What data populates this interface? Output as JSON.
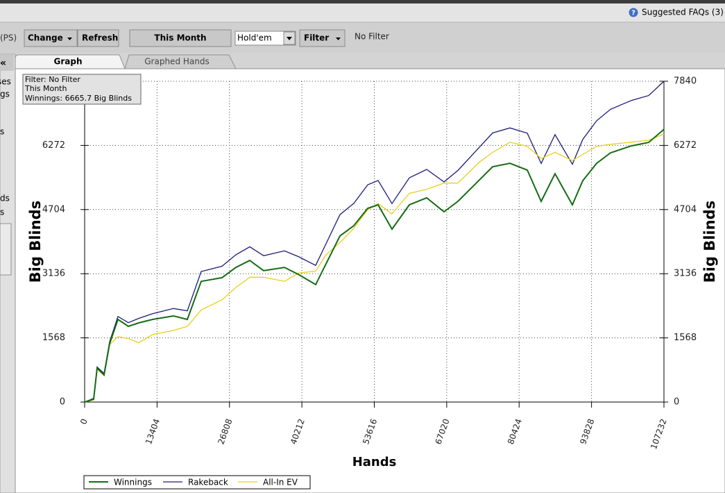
{
  "ui": {
    "faq_icon": "?",
    "faq": "Suggested FAQs (3)",
    "toolbar": {
      "site": "(PS)",
      "change": "Change",
      "refresh": "Refresh",
      "period": "This Month",
      "game": "Hold'em",
      "filter": "Filter",
      "filter_status": "No Filter"
    },
    "sidebar": [
      "«",
      "ses",
      "gs",
      "s",
      "ds",
      "s"
    ],
    "tabs": [
      "Graph",
      "Graphed Hands"
    ],
    "info_box": [
      "Filter: No Filter",
      "This Month",
      "Winnings: 6665.7 Big Blinds"
    ]
  },
  "chart_data": {
    "type": "line",
    "xlabel": "Hands",
    "ylabel": "Big Blinds",
    "x": [
      0,
      1669,
      2312,
      3596,
      4623,
      6164,
      8090,
      10016,
      12585,
      16438,
      19006,
      21575,
      25427,
      27996,
      30564,
      33132,
      36985,
      39553,
      42764,
      44690,
      47259,
      49827,
      52395,
      54322,
      56890,
      60101,
      63311,
      66522,
      69090,
      72943,
      75511,
      78721,
      81932,
      84500,
      87069,
      90279,
      92206,
      94774,
      97342,
      101195,
      104406,
      107232
    ],
    "series": [
      {
        "name": "Winnings",
        "color": "#146c14",
        "values": [
          0,
          70,
          830,
          660,
          1425,
          2020,
          1850,
          1935,
          2020,
          2105,
          2020,
          2950,
          3040,
          3290,
          3460,
          3210,
          3290,
          3120,
          2870,
          3380,
          4060,
          4310,
          4735,
          4820,
          4225,
          4820,
          4990,
          4650,
          4905,
          5410,
          5750,
          5835,
          5670,
          4905,
          5580,
          4820,
          5410,
          5835,
          6090,
          6260,
          6345,
          6665.7
        ]
      },
      {
        "name": "Rakeback",
        "color": "#1a1a7a",
        "values": [
          0,
          90,
          855,
          700,
          1475,
          2090,
          1940,
          2045,
          2160,
          2285,
          2230,
          3190,
          3320,
          3600,
          3795,
          3575,
          3695,
          3555,
          3340,
          3870,
          4580,
          4855,
          5310,
          5415,
          4850,
          5480,
          5685,
          5380,
          5660,
          6210,
          6575,
          6700,
          6570,
          5830,
          6535,
          5810,
          6420,
          6875,
          7155,
          7370,
          7490,
          7840
        ]
      },
      {
        "name": "All-In EV",
        "color": "#e8d01c",
        "values": [
          0,
          50,
          800,
          650,
          1400,
          1600,
          1550,
          1450,
          1650,
          1750,
          1850,
          2250,
          2500,
          2800,
          3050,
          3050,
          2950,
          3150,
          3200,
          3600,
          3900,
          4250,
          4700,
          4850,
          4600,
          5100,
          5200,
          5350,
          5350,
          5850,
          6100,
          6350,
          6250,
          5950,
          6100,
          5900,
          6050,
          6250,
          6300,
          6350,
          6400,
          6550
        ]
      }
    ],
    "xlim": [
      0,
      107232
    ],
    "xticks": [
      0,
      13404,
      26808,
      40212,
      53616,
      67020,
      80424,
      93828,
      107232
    ],
    "ylim": [
      0,
      7840
    ],
    "yticks": [
      0,
      1568,
      3136,
      4704,
      6272,
      7840
    ],
    "grid": true,
    "legend": "bottom-left"
  }
}
